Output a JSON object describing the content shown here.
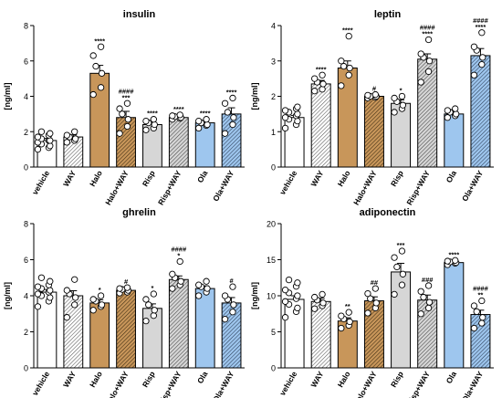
{
  "figure": {
    "colors": {
      "vehicle": "#ffffff",
      "way": "#ffffff",
      "halo": "#c8965a",
      "ola": "#9ec6ee",
      "risp": "#d6d6d6",
      "stroke": "#000000",
      "point_fill": "#ffffff"
    }
  },
  "chart_data": [
    {
      "type": "bar",
      "title": "insulin",
      "ylabel": "[ng/ml]",
      "ylim": [
        0,
        8
      ],
      "yticks": [
        "0",
        "2",
        "4",
        "6",
        "8"
      ],
      "categories": [
        "vehicle",
        "WAY",
        "Halo",
        "Halo+WAY",
        "Risp",
        "Risp+WAY",
        "Ola",
        "Ola+WAY"
      ],
      "values": [
        1.5,
        1.7,
        5.3,
        2.8,
        2.4,
        2.8,
        2.5,
        3.0
      ],
      "errors": [
        0.12,
        0.12,
        0.45,
        0.35,
        0.14,
        0.08,
        0.12,
        0.35
      ],
      "points": [
        [
          1.0,
          1.1,
          1.2,
          1.3,
          1.4,
          1.5,
          1.5,
          1.6,
          1.7,
          1.8,
          1.9,
          2.0
        ],
        [
          1.4,
          1.5,
          1.6,
          1.7,
          1.8,
          2.0
        ],
        [
          4.1,
          4.5,
          5.3,
          5.7,
          6.3,
          6.8
        ],
        [
          1.9,
          2.3,
          2.7,
          3.0,
          3.3,
          3.6
        ],
        [
          2.1,
          2.2,
          2.4,
          2.5,
          2.6,
          2.7
        ],
        [
          2.7,
          2.75,
          2.8,
          2.85,
          2.9,
          2.95
        ],
        [
          2.2,
          2.35,
          2.4,
          2.5,
          2.6,
          2.7
        ],
        [
          1.9,
          2.4,
          2.8,
          3.1,
          3.6,
          3.9
        ]
      ],
      "annotations": [
        "",
        "",
        "****",
        "***|####",
        "****",
        "****",
        "****",
        "****"
      ]
    },
    {
      "type": "bar",
      "title": "leptin",
      "ylabel": "[ng/ml]",
      "ylim": [
        0,
        4
      ],
      "yticks": [
        "0",
        "1",
        "2",
        "3",
        "4"
      ],
      "categories": [
        "vehicle",
        "WAY",
        "Halo",
        "Halo+WAY",
        "Risp",
        "Risp+WAY",
        "Ola",
        "Ola+WAY"
      ],
      "values": [
        1.4,
        2.35,
        2.8,
        2.0,
        1.8,
        3.05,
        1.5,
        3.15
      ],
      "errors": [
        0.06,
        0.1,
        0.2,
        0.05,
        0.1,
        0.15,
        0.07,
        0.2
      ],
      "points": [
        [
          1.1,
          1.2,
          1.3,
          1.35,
          1.4,
          1.45,
          1.5,
          1.55,
          1.6,
          1.65,
          1.7
        ],
        [
          2.15,
          2.2,
          2.35,
          2.4,
          2.5,
          2.6
        ],
        [
          2.3,
          2.6,
          2.8,
          2.85,
          3.0,
          3.7
        ],
        [
          1.95,
          1.97,
          2.0,
          2.0,
          2.03,
          2.05
        ],
        [
          1.55,
          1.65,
          1.75,
          1.85,
          1.95,
          2.0
        ],
        [
          2.4,
          2.7,
          3.0,
          3.1,
          3.2,
          3.6
        ],
        [
          1.4,
          1.45,
          1.5,
          1.55,
          1.6,
          1.65
        ],
        [
          2.6,
          2.9,
          3.1,
          3.3,
          3.4,
          3.8
        ]
      ],
      "annotations": [
        "",
        "****",
        "****",
        "#",
        "*",
        "****|####",
        "",
        "****|####"
      ]
    },
    {
      "type": "bar",
      "title": "ghrelin",
      "ylabel": "[ng/ml]",
      "ylim": [
        0,
        8
      ],
      "yticks": [
        "0",
        "2",
        "4",
        "6",
        "8"
      ],
      "categories": [
        "vehicle",
        "WAY",
        "Halo",
        "Halo+WAY",
        "Risp",
        "Risp+WAY",
        "Ola",
        "Ola+WAY"
      ],
      "values": [
        4.2,
        4.0,
        3.6,
        4.3,
        3.3,
        4.9,
        4.4,
        3.6
      ],
      "errors": [
        0.15,
        0.28,
        0.18,
        0.1,
        0.25,
        0.2,
        0.15,
        0.3
      ],
      "points": [
        [
          3.4,
          3.7,
          3.9,
          4.0,
          4.1,
          4.2,
          4.3,
          4.4,
          4.5,
          4.6,
          4.8,
          5.0
        ],
        [
          2.8,
          3.5,
          3.9,
          4.1,
          4.3,
          4.9
        ],
        [
          3.2,
          3.4,
          3.5,
          3.7,
          3.8,
          4.0
        ],
        [
          4.15,
          4.2,
          4.3,
          4.35,
          4.4,
          4.45
        ],
        [
          2.6,
          2.9,
          3.2,
          3.5,
          3.8,
          4.1
        ],
        [
          4.4,
          4.6,
          4.8,
          5.0,
          5.2,
          5.9
        ],
        [
          4.0,
          4.2,
          4.4,
          4.5,
          4.6,
          4.8
        ],
        [
          2.7,
          3.1,
          3.5,
          3.8,
          4.0,
          4.5
        ]
      ],
      "annotations": [
        "",
        "",
        "*",
        "#",
        "*",
        "*|####",
        "",
        "#"
      ]
    },
    {
      "type": "bar",
      "title": "adiponectin",
      "ylabel": "[ng/ml]",
      "ylim": [
        0,
        20
      ],
      "yticks": [
        "0",
        "5",
        "10",
        "15",
        "20"
      ],
      "categories": [
        "vehicle",
        "WAY",
        "Halo",
        "Halo+WAY",
        "Risp",
        "Risp+WAY",
        "Ola",
        "Ola+WAY"
      ],
      "values": [
        9.5,
        9.2,
        6.5,
        9.3,
        13.3,
        9.4,
        14.6,
        7.4
      ],
      "errors": [
        0.5,
        0.45,
        0.45,
        0.55,
        1.2,
        0.7,
        0.2,
        0.6
      ],
      "points": [
        [
          7.0,
          7.8,
          8.3,
          8.8,
          9.2,
          9.6,
          10.0,
          10.4,
          10.8,
          11.3,
          11.8,
          12.2
        ],
        [
          8.2,
          8.6,
          9.0,
          9.4,
          9.8,
          10.2
        ],
        [
          5.5,
          5.9,
          6.4,
          6.8,
          7.2,
          7.7
        ],
        [
          7.6,
          8.3,
          9.0,
          9.6,
          10.3,
          11.0
        ],
        [
          10.2,
          11.5,
          13.0,
          14.0,
          15.3,
          16.2
        ],
        [
          7.5,
          8.3,
          9.1,
          9.8,
          10.6,
          11.4
        ],
        [
          14.3,
          14.5,
          14.6,
          14.7,
          14.8,
          14.9
        ],
        [
          5.5,
          6.2,
          7.0,
          7.8,
          8.6,
          9.3
        ]
      ],
      "annotations": [
        "",
        "",
        "**",
        "##",
        "***",
        "###",
        "****",
        "**|####"
      ]
    }
  ]
}
